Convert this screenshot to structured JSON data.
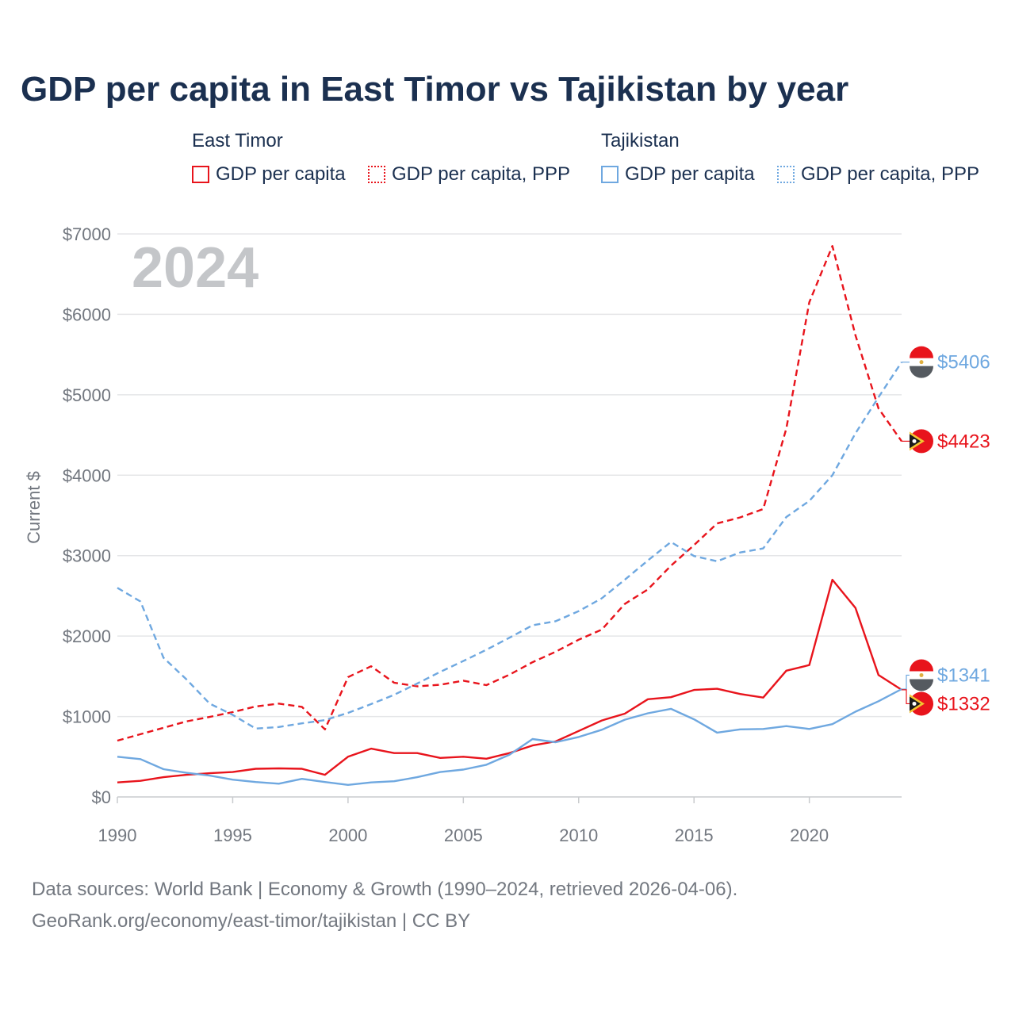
{
  "title": "GDP per capita in East Timor vs Tajikistan by year",
  "legend": {
    "groups": [
      {
        "country": "East Timor",
        "items": [
          {
            "label": "GDP per capita",
            "style": "solid"
          },
          {
            "label": "GDP per capita, PPP",
            "style": "dotted"
          }
        ]
      },
      {
        "country": "Tajikistan",
        "items": [
          {
            "label": "GDP per capita",
            "style": "solid"
          },
          {
            "label": "GDP per capita, PPP",
            "style": "dotted"
          }
        ]
      }
    ]
  },
  "footer": {
    "line1": "Data sources: World Bank | Economy & Growth (1990–2024, retrieved 2026-04-06).",
    "line2": "GeoRank.org/economy/east-timor/tajikistan | CC BY"
  },
  "colors": {
    "east_timor": "#e8141c",
    "tajikistan": "#6fa8e0",
    "title": "#1b3050",
    "axis_text": "#737880",
    "year_watermark": "#c4c6c9",
    "grid": "#e5e6e8"
  },
  "chart_data": {
    "type": "line",
    "year_label": "2024",
    "ylabel": "Current $",
    "xlim": [
      1990,
      2024
    ],
    "ylim": [
      0,
      7000
    ],
    "x_ticks": [
      1990,
      1995,
      2000,
      2005,
      2010,
      2015,
      2020
    ],
    "y_ticks": [
      0,
      1000,
      2000,
      3000,
      4000,
      5000,
      6000,
      7000
    ],
    "y_tick_labels": [
      "$0",
      "$1000",
      "$2000",
      "$3000",
      "$4000",
      "$5000",
      "$6000",
      "$7000"
    ],
    "x": [
      1990,
      1991,
      1992,
      1993,
      1994,
      1995,
      1996,
      1997,
      1998,
      1999,
      2000,
      2001,
      2002,
      2003,
      2004,
      2005,
      2006,
      2007,
      2008,
      2009,
      2010,
      2011,
      2012,
      2013,
      2014,
      2015,
      2016,
      2017,
      2018,
      2019,
      2020,
      2021,
      2022,
      2023,
      2024
    ],
    "series": [
      {
        "name": "East Timor GDP per capita",
        "country": "East Timor",
        "style": "solid",
        "color": "#e8141c",
        "end_label": "$1332",
        "values": [
          180,
          200,
          245,
          275,
          295,
          310,
          350,
          355,
          350,
          275,
          500,
          600,
          545,
          545,
          485,
          500,
          475,
          545,
          640,
          690,
          820,
          950,
          1035,
          1215,
          1240,
          1330,
          1345,
          1280,
          1235,
          1570,
          1640,
          2700,
          2350,
          1515,
          1332
        ]
      },
      {
        "name": "East Timor GDP per capita, PPP",
        "country": "East Timor",
        "style": "dashed",
        "color": "#e8141c",
        "end_label": "$4423",
        "values": [
          700,
          780,
          860,
          940,
          995,
          1055,
          1125,
          1160,
          1120,
          840,
          1490,
          1625,
          1420,
          1375,
          1395,
          1445,
          1390,
          1520,
          1675,
          1805,
          1955,
          2080,
          2400,
          2580,
          2875,
          3130,
          3400,
          3475,
          3580,
          4580,
          6150,
          6850,
          5740,
          4830,
          4423
        ]
      },
      {
        "name": "Tajikistan GDP per capita",
        "country": "Tajikistan",
        "style": "solid",
        "color": "#6fa8e0",
        "end_label": "$1341",
        "values": [
          500,
          470,
          345,
          300,
          265,
          215,
          185,
          165,
          225,
          185,
          150,
          180,
          195,
          245,
          310,
          340,
          400,
          525,
          720,
          680,
          745,
          835,
          960,
          1040,
          1095,
          965,
          800,
          840,
          845,
          880,
          845,
          905,
          1060,
          1190,
          1341
        ]
      },
      {
        "name": "Tajikistan GDP per capita, PPP",
        "country": "Tajikistan",
        "style": "dashed",
        "color": "#6fa8e0",
        "end_label": "$5406",
        "values": [
          2600,
          2430,
          1730,
          1460,
          1160,
          1020,
          850,
          870,
          915,
          955,
          1045,
          1155,
          1270,
          1410,
          1555,
          1690,
          1830,
          1980,
          2135,
          2185,
          2310,
          2470,
          2700,
          2940,
          3170,
          2995,
          2930,
          3040,
          3090,
          3480,
          3680,
          4000,
          4520,
          4970,
          5406
        ]
      }
    ]
  }
}
